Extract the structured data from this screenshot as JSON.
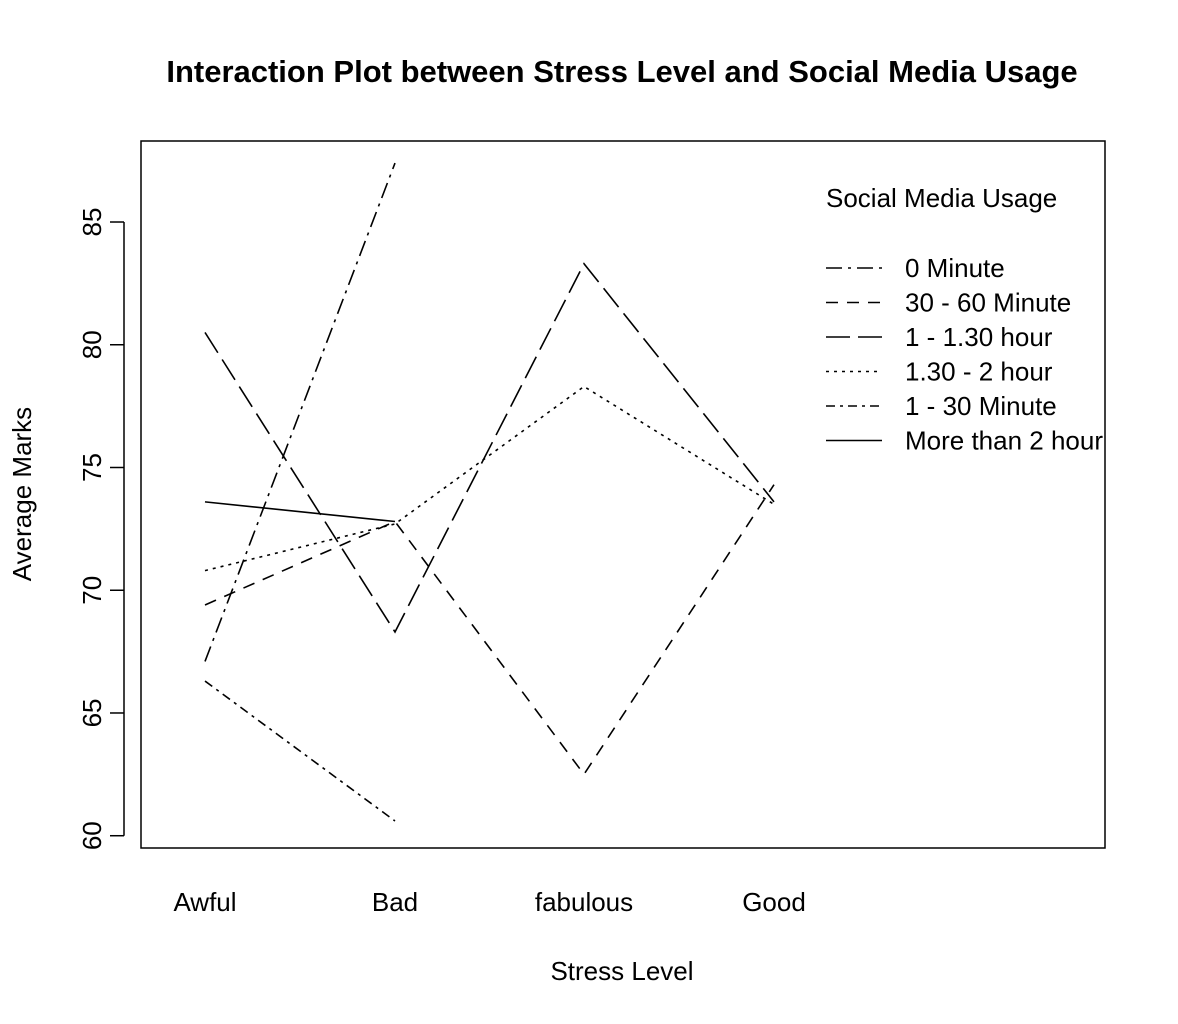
{
  "chart_data": {
    "type": "line",
    "title": "Interaction Plot between Stress Level and Social Media Usage",
    "xlabel": "Stress Level",
    "ylabel": "Average Marks",
    "categories": [
      "Awful",
      "Bad",
      "fabulous",
      "Good"
    ],
    "ylim": [
      59.5,
      88.3
    ],
    "yticks": [
      60,
      65,
      70,
      75,
      80,
      85
    ],
    "grid": false,
    "legend": {
      "title": "Social Media Usage",
      "placement": "top-right"
    },
    "series": [
      {
        "name": "0 Minute",
        "dash": "16,6,3,6",
        "values": [
          67.1,
          87.4,
          null,
          null
        ]
      },
      {
        "name": "30 - 60 Minute",
        "dash": "12,9",
        "values": [
          69.4,
          72.8,
          62.5,
          74.3
        ]
      },
      {
        "name": "1 - 1.30 hour",
        "dash": "24,8",
        "values": [
          80.5,
          68.3,
          83.3,
          73.6
        ]
      },
      {
        "name": "1.30 - 2 hour",
        "dash": "3,5",
        "values": [
          70.8,
          72.7,
          78.3,
          73.5
        ]
      },
      {
        "name": "1 - 30 Minute",
        "dash": "9,5,3,5",
        "values": [
          66.3,
          60.6,
          null,
          73.0
        ]
      },
      {
        "name": "More than 2 hour",
        "dash": "",
        "values": [
          73.6,
          72.8,
          null,
          null
        ]
      }
    ]
  }
}
